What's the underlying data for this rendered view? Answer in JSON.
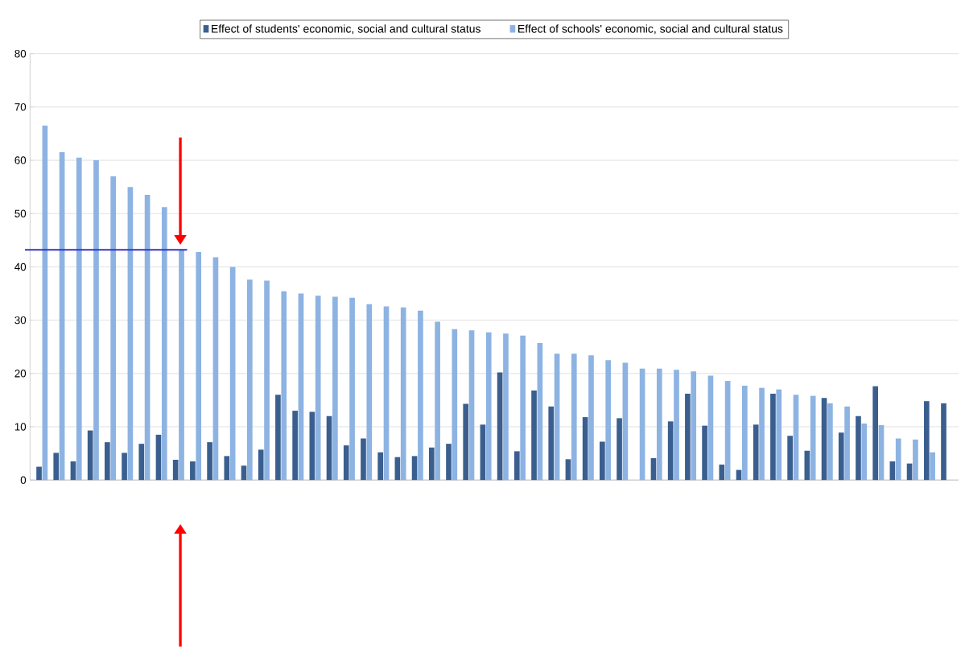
{
  "chart_data": {
    "type": "bar",
    "categories": [
      null,
      null,
      null,
      null,
      null,
      null,
      null,
      null,
      null,
      null,
      null,
      null,
      null,
      null,
      null,
      null,
      null,
      null,
      null,
      null,
      null,
      null,
      null,
      null,
      null,
      null,
      null,
      null,
      null,
      null,
      null,
      null,
      null,
      null,
      null,
      null,
      null,
      null,
      null,
      null,
      null,
      null,
      null,
      null,
      null,
      null,
      null,
      null,
      null,
      null,
      null,
      null,
      null,
      null
    ],
    "series": [
      {
        "name": "Effect of students' economic, social and cultural status",
        "color": "#3a5f8f",
        "values": [
          2.5,
          5.1,
          3.5,
          9.3,
          7.1,
          5.1,
          6.8,
          8.5,
          3.8,
          3.5,
          7.1,
          4.5,
          2.7,
          5.7,
          16,
          13,
          12.8,
          12,
          6.5,
          7.8,
          5.2,
          4.3,
          4.5,
          6.1,
          6.8,
          14.3,
          10.4,
          20.2,
          5.4,
          16.8,
          13.8,
          3.9,
          11.8,
          7.2,
          11.6,
          null,
          4.1,
          11,
          16.2,
          10.2,
          2.9,
          1.9,
          10.4,
          16.2,
          8.3,
          5.5,
          15.4,
          8.9,
          12,
          17.6,
          3.5,
          3.1,
          14.8,
          14.4
        ]
      },
      {
        "name": "Effect of schools' economic, social and cultural status",
        "color": "#8db3e2",
        "values": [
          66.5,
          61.5,
          60.5,
          60,
          57,
          55,
          53.5,
          51.2,
          43.2,
          42.8,
          41.8,
          40,
          37.6,
          37.4,
          35.4,
          35,
          34.6,
          34.4,
          34.2,
          33,
          32.6,
          32.4,
          31.8,
          29.7,
          28.3,
          28.1,
          27.7,
          27.5,
          27.1,
          25.7,
          23.7,
          23.7,
          23.4,
          22.5,
          22,
          20.9,
          20.9,
          20.7,
          20.4,
          19.6,
          18.6,
          17.7,
          17.3,
          17,
          16,
          15.8,
          14.4,
          13.8,
          10.6,
          10.3,
          7.8,
          7.6,
          5.2,
          null
        ]
      }
    ],
    "ylim": [
      0,
      80
    ],
    "yticks": [
      0,
      10,
      20,
      30,
      40,
      50,
      60,
      70,
      80
    ],
    "grid": "y",
    "legend": "top",
    "ref_lines": [
      {
        "axis": "y",
        "value": 43.2,
        "color": "#3333cc"
      }
    ]
  }
}
